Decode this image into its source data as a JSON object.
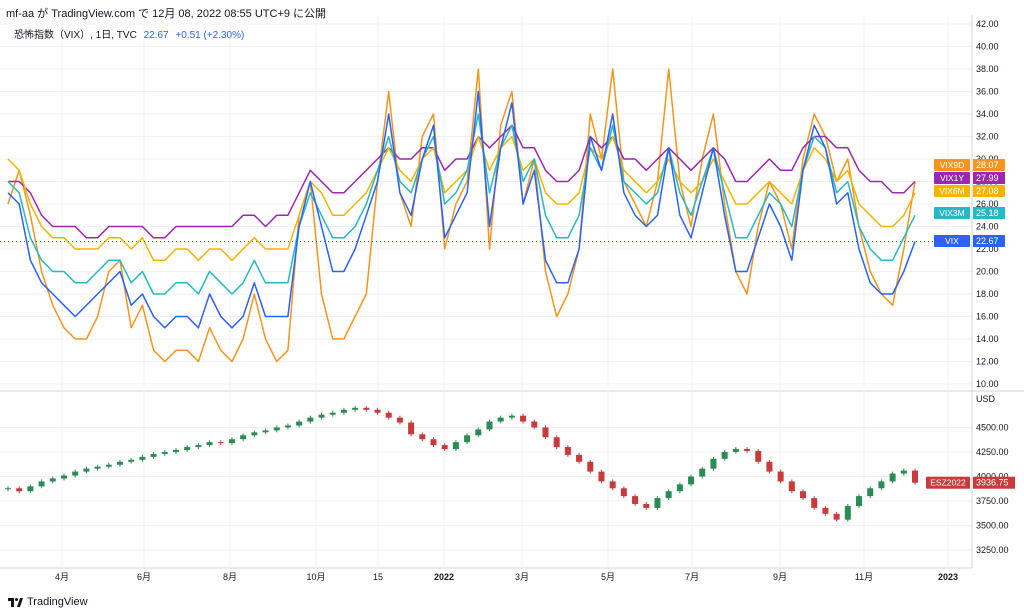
{
  "header": {
    "publish_line": "mf-aa が TradingView.com で 12月 08, 2022 08:55 UTC+9 に公開"
  },
  "legend": {
    "symbol": "恐怖指数（VIX）, 1日, TVC",
    "last": "22.67",
    "change": "+0.51 (+2.30%)"
  },
  "footer": {
    "brand": "TradingView"
  },
  "colors": {
    "vix": "#2962ff",
    "vix9d": "#f7941d",
    "vix3m": "#26b8c4",
    "vix6m": "#f6b400",
    "vix1y": "#9c27b0",
    "es_up": "#2a8b55",
    "es_down": "#c93b3b",
    "grid": "#eef0f3"
  },
  "chart_data": [
    {
      "type": "line",
      "title": "",
      "ylim": [
        10,
        42
      ],
      "y_ticks": [
        "42.00",
        "40.00",
        "38.00",
        "36.00",
        "34.00",
        "32.00",
        "30.00",
        "28.00",
        "26.00",
        "24.00",
        "22.00",
        "20.00",
        "18.00",
        "16.00",
        "14.00",
        "12.00",
        "10.00"
      ],
      "x_ticks": [
        "4月",
        "6月",
        "8月",
        "10月",
        "15",
        "2022",
        "3月",
        "5月",
        "7月",
        "9月",
        "11月",
        "2023"
      ],
      "series": [
        {
          "name": "VIX9D",
          "color": "#f7941d",
          "last_label": "28.07",
          "values": [
            26,
            29,
            25,
            20,
            17,
            15,
            14,
            14,
            16,
            20,
            21,
            15,
            17,
            13,
            12,
            13,
            13,
            12,
            15,
            13,
            12,
            14,
            18,
            14,
            12,
            13,
            25,
            28,
            18,
            14,
            14,
            16,
            18,
            28,
            36,
            27,
            24,
            32,
            34,
            22,
            26,
            28,
            38,
            22,
            33,
            36,
            26,
            30,
            20,
            16,
            18,
            22,
            34,
            30,
            38,
            28,
            26,
            24,
            28,
            38,
            28,
            24,
            30,
            34,
            26,
            20,
            18,
            24,
            28,
            26,
            22,
            30,
            34,
            32,
            28,
            30,
            24,
            20,
            18,
            17,
            22,
            28
          ]
        },
        {
          "name": "VIX1Y",
          "color": "#9c27b0",
          "last_label": "27.99",
          "values": [
            28,
            28,
            27,
            25,
            24,
            24,
            24,
            23,
            23,
            24,
            24,
            24,
            24,
            23,
            23,
            24,
            24,
            24,
            24,
            24,
            24,
            25,
            25,
            24,
            25,
            25,
            27,
            29,
            28,
            27,
            27,
            28,
            29,
            30,
            31,
            30,
            30,
            31,
            31,
            29,
            30,
            30,
            32,
            31,
            32,
            33,
            31,
            31,
            29,
            28,
            28,
            29,
            32,
            31,
            32,
            30,
            30,
            29,
            30,
            31,
            30,
            29,
            30,
            31,
            30,
            28,
            28,
            29,
            30,
            29,
            29,
            31,
            32,
            32,
            31,
            31,
            29,
            28,
            28,
            27,
            27,
            28
          ]
        },
        {
          "name": "VIX6M",
          "color": "#f6b400",
          "last_label": "27.08",
          "values": [
            30,
            29,
            26,
            24,
            23,
            23,
            22,
            22,
            22,
            23,
            23,
            22,
            23,
            21,
            21,
            22,
            22,
            21,
            22,
            22,
            21,
            22,
            23,
            22,
            22,
            22,
            25,
            28,
            27,
            25,
            25,
            26,
            27,
            29,
            31,
            29,
            28,
            30,
            31,
            27,
            28,
            29,
            32,
            29,
            31,
            32,
            29,
            30,
            27,
            26,
            26,
            27,
            31,
            30,
            32,
            29,
            28,
            27,
            28,
            30,
            28,
            27,
            28,
            30,
            28,
            26,
            26,
            27,
            28,
            27,
            26,
            29,
            31,
            30,
            28,
            29,
            26,
            25,
            24,
            24,
            25,
            27
          ]
        },
        {
          "name": "VIX3M",
          "color": "#26b8c4",
          "last_label": "25.18",
          "values": [
            28,
            27,
            23,
            21,
            20,
            20,
            19,
            19,
            20,
            21,
            21,
            19,
            20,
            18,
            18,
            19,
            19,
            18,
            20,
            19,
            18,
            19,
            21,
            19,
            19,
            19,
            24,
            27,
            25,
            23,
            23,
            24,
            26,
            29,
            32,
            28,
            27,
            30,
            32,
            26,
            27,
            29,
            34,
            27,
            31,
            33,
            28,
            30,
            25,
            23,
            23,
            25,
            31,
            29,
            33,
            28,
            27,
            26,
            27,
            31,
            27,
            25,
            28,
            31,
            27,
            23,
            23,
            25,
            27,
            26,
            24,
            29,
            32,
            31,
            27,
            28,
            24,
            22,
            21,
            21,
            23,
            25
          ]
        },
        {
          "name": "VIX",
          "color": "#2962ff",
          "last_label": "22.67",
          "values": [
            27,
            26,
            21,
            19,
            18,
            17,
            16,
            17,
            18,
            19,
            20,
            17,
            18,
            16,
            15,
            16,
            16,
            15,
            18,
            16,
            15,
            16,
            19,
            16,
            16,
            16,
            24,
            28,
            24,
            20,
            20,
            22,
            25,
            28,
            34,
            27,
            25,
            30,
            33,
            23,
            25,
            27,
            36,
            24,
            31,
            35,
            26,
            29,
            21,
            19,
            19,
            22,
            32,
            29,
            34,
            27,
            25,
            24,
            25,
            31,
            25,
            23,
            27,
            31,
            25,
            20,
            20,
            23,
            26,
            24,
            21,
            29,
            33,
            31,
            26,
            27,
            22,
            19,
            18,
            18,
            20,
            22.67
          ]
        }
      ]
    },
    {
      "type": "line",
      "title": "",
      "ylabel": "USD",
      "ylim": [
        3200,
        4800
      ],
      "y_ticks": [
        "4500.00",
        "4250.00",
        "4000.00",
        "3750.00",
        "3500.00",
        "3250.00"
      ],
      "series": [
        {
          "name": "ESZ2022",
          "color": "#c93b3b",
          "last_label": "3936.75",
          "values": [
            3880,
            3850,
            3900,
            3950,
            3980,
            4010,
            4050,
            4080,
            4100,
            4120,
            4150,
            4170,
            4200,
            4230,
            4250,
            4270,
            4300,
            4320,
            4350,
            4340,
            4380,
            4420,
            4450,
            4470,
            4500,
            4520,
            4560,
            4600,
            4630,
            4650,
            4680,
            4700,
            4680,
            4650,
            4600,
            4550,
            4430,
            4380,
            4320,
            4280,
            4350,
            4420,
            4480,
            4560,
            4600,
            4620,
            4560,
            4500,
            4400,
            4300,
            4220,
            4150,
            4050,
            3950,
            3880,
            3800,
            3720,
            3680,
            3780,
            3850,
            3920,
            4000,
            4080,
            4180,
            4250,
            4280,
            4260,
            4150,
            4050,
            3950,
            3850,
            3780,
            3680,
            3620,
            3560,
            3700,
            3800,
            3880,
            3950,
            4030,
            4060,
            3936.75
          ]
        }
      ]
    }
  ]
}
